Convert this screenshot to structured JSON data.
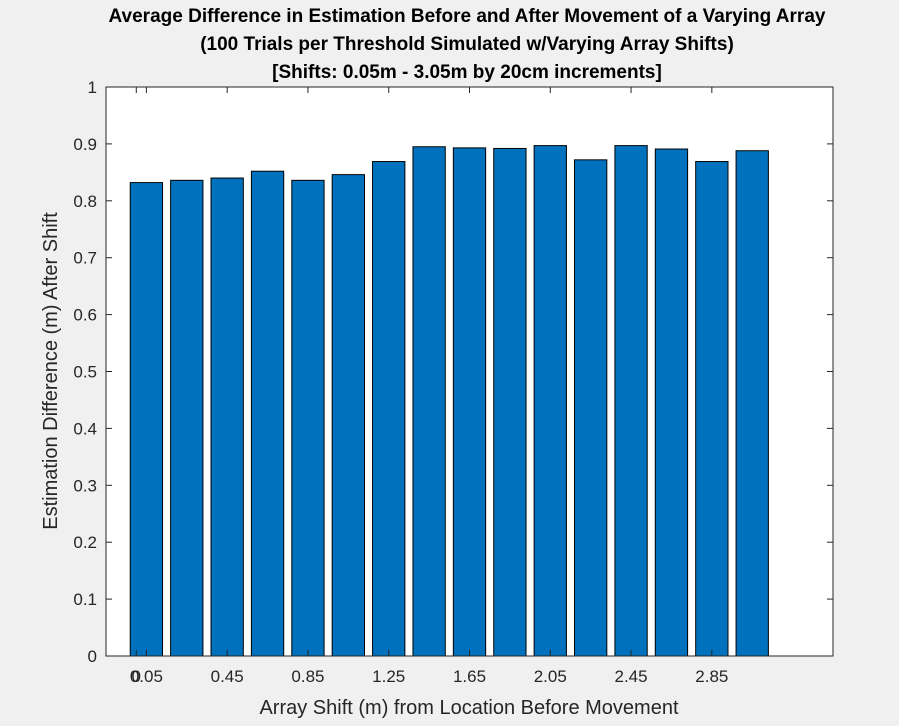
{
  "chart_data": {
    "type": "bar",
    "title": [
      "Average Difference in Estimation Before and After Movement of a Varying Array",
      "(100 Trials per Threshold Simulated w/Varying Array Shifts)",
      "[Shifts: 0.05m - 3.05m by 20cm increments]"
    ],
    "xlabel": "Array Shift (m) from Location Before Movement",
    "ylabel": "Estimation Difference (m) After Shift",
    "xlim": [
      -0.15,
      3.45
    ],
    "ylim": [
      0,
      1
    ],
    "x": [
      0.05,
      0.25,
      0.45,
      0.65,
      0.85,
      1.05,
      1.25,
      1.45,
      1.65,
      1.85,
      2.05,
      2.25,
      2.45,
      2.65,
      2.85,
      3.05
    ],
    "values": [
      0.832,
      0.836,
      0.84,
      0.852,
      0.836,
      0.846,
      0.869,
      0.895,
      0.893,
      0.892,
      0.897,
      0.872,
      0.897,
      0.891,
      0.869,
      0.888
    ],
    "x_ticks": [
      0,
      0.05,
      0.45,
      0.85,
      1.25,
      1.65,
      2.05,
      2.45,
      2.85
    ],
    "x_tick_labels": [
      "0",
      "0.05",
      "0.45",
      "0.85",
      "1.25",
      "1.65",
      "2.05",
      "2.45",
      "2.85"
    ],
    "y_ticks": [
      0,
      0.1,
      0.2,
      0.3,
      0.4,
      0.5,
      0.6,
      0.7,
      0.8,
      0.9,
      1
    ],
    "y_tick_labels": [
      "0",
      "0.1",
      "0.2",
      "0.3",
      "0.4",
      "0.5",
      "0.6",
      "0.7",
      "0.8",
      "0.9",
      "1"
    ],
    "bar_color": "#0072BD",
    "edge_color": "#000000",
    "grid": false,
    "legend": "none"
  }
}
